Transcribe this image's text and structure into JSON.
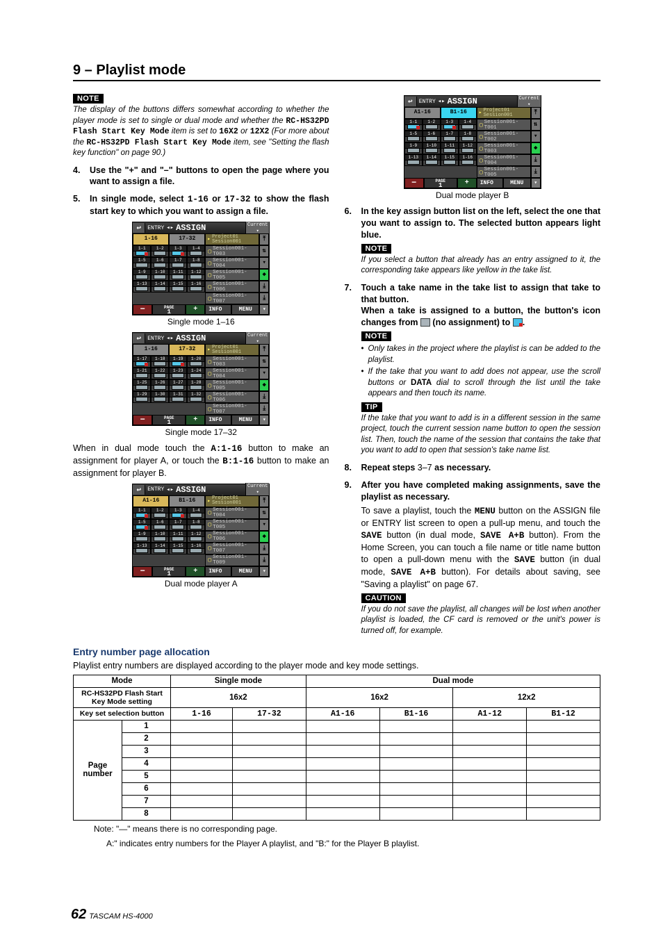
{
  "section_title": "9 – Playlist mode",
  "note_label": "NOTE",
  "tip_label": "TIP",
  "caution_label": "CAUTION",
  "left": {
    "note1_a": "The display of the buttons differs somewhat according to whether the player mode is set to single or dual mode and whether the ",
    "note1_m1": "RC-HS32PD Flash Start Key Mode",
    "note1_b": " item is set to ",
    "note1_m2": "16X2",
    "note1_c": " or ",
    "note1_m3": "12X2",
    "note1_d": " (For more about the ",
    "note1_m4": "RC-HS32PD Flash Start Key Mode",
    "note1_e": " item, see \"Setting the flash key function\" on page 90.)",
    "step4": "Use the \"+\" and \"–\" buttons to open the page where you want to assign a file.",
    "step5_a": "In single mode, select ",
    "step5_m1": "1-16",
    "step5_b": " or ",
    "step5_m2": "17-32",
    "step5_c": " to show the flash start key to which you want to assign a file.",
    "cap1": "Single mode 1–16",
    "cap2": "Single mode 17–32",
    "dual_a": "When in dual mode touch the ",
    "dual_m1": "A:1-16",
    "dual_b": " button to make an assignment for player A, or touch the ",
    "dual_m2": "B:1-16",
    "dual_c": " button to make an assignment for player B.",
    "cap3": "Dual mode player A"
  },
  "right": {
    "cap4": "Dual mode player B",
    "step6": "In the key assign button list on the left, select the one that you want to assign to. The selected button appears light blue.",
    "note2": "If you select a button that already has an entry assigned to it, the corresponding take appears like yellow in the take list.",
    "step7": "Touch a take name in the take list to assign that take to that button.",
    "step7b_a": "When a take is assigned to a button, the button's icon changes from ",
    "step7b_b": " (no assignment) to ",
    "step7b_c": ".",
    "bullet1": "Only takes in the project where the playlist is can be added to the playlist.",
    "bullet2_a": "If the take that you want to add does not appear, use the scroll buttons or ",
    "bullet2_m": "DATA",
    "bullet2_b": " dial to scroll through the list until the take appears and then touch its name.",
    "tip": "If the take that you want to add is in a different session in the same project, touch the current session name button to open the session list. Then, touch the name of the session that contains the take that you want to add to open that session's take name list.",
    "step8_a": "Repeat steps ",
    "step8_m": "3–7",
    "step8_b": " as necessary.",
    "step9": "After you have completed making assignments, save the playlist as necessary.",
    "save_a": "To save a playlist, touch the ",
    "save_m1": "MENU",
    "save_b": " button on the ASSIGN file or ENTRY list screen to open a pull-up menu, and touch the ",
    "save_m2": "SAVE",
    "save_c": " button (in dual mode, ",
    "save_m3": "SAVE A+B",
    "save_d": " button). From the Home Screen, you can touch a file name or title name button to open a pull-down menu with the ",
    "save_m4": "SAVE",
    "save_e": " button (in dual mode, ",
    "save_m5": "SAVE A+B",
    "save_f": " button). For details about saving, see \"Saving a playlist\" on page 67.",
    "caution": "If you do not save the playlist, all changes will be lost when another playlist is loaded, the CF card is removed or the unit's power is turned off, for example."
  },
  "assigns": {
    "title_prefix": "ENTRY",
    "arrow": "◂▸",
    "title_main": "ASSIGN",
    "current": "Current",
    "proj": "Project01",
    "sess": "Session001",
    "info": "INFO",
    "menu": "MENU",
    "page": "PAGE",
    "s1": {
      "tabs": [
        "1-16",
        "17-32"
      ],
      "keys": [
        [
          "1-1",
          "1-2",
          "1-3",
          "1-4"
        ],
        [
          "1-5",
          "1-6",
          "1-7",
          "1-8"
        ],
        [
          "1-9",
          "1-10",
          "1-11",
          "1-12"
        ],
        [
          "1-13",
          "1-14",
          "1-15",
          "1-16"
        ]
      ],
      "takes": [
        "Session001-T003",
        "Session001-T004",
        "Session001-T005",
        "Session001-T006",
        "Session001-T007"
      ]
    },
    "s2": {
      "tabs": [
        "1-16",
        "17-32"
      ],
      "keys": [
        [
          "1-17",
          "1-18",
          "1-19",
          "1-20"
        ],
        [
          "1-21",
          "1-22",
          "1-23",
          "1-24"
        ],
        [
          "1-25",
          "1-26",
          "1-27",
          "1-28"
        ],
        [
          "1-29",
          "1-30",
          "1-31",
          "1-32"
        ]
      ],
      "takes": [
        "Session001-T003",
        "Session001-T004",
        "Session001-T005",
        "Session001-T006",
        "Session001-T007"
      ]
    },
    "s3": {
      "tabs": [
        "A1-16",
        "B1-16"
      ],
      "keys": [
        [
          "1-1",
          "1-2",
          "1-3",
          "1-4"
        ],
        [
          "1-5",
          "1-6",
          "1-7",
          "1-8"
        ],
        [
          "1-9",
          "1-10",
          "1-11",
          "1-12"
        ],
        [
          "1-13",
          "1-14",
          "1-15",
          "1-16"
        ]
      ],
      "takes": [
        "Session001-T004",
        "Session001-T005",
        "Session001-T006",
        "Session001-T007",
        "Session001-T009"
      ]
    },
    "s4": {
      "tabs": [
        "A1-16",
        "B1-16"
      ],
      "keys": [
        [
          "1-1",
          "1-2",
          "1-3",
          "1-4"
        ],
        [
          "1-5",
          "1-6",
          "1-7",
          "1-8"
        ],
        [
          "1-9",
          "1-10",
          "1-11",
          "1-12"
        ],
        [
          "1-13",
          "1-14",
          "1-15",
          "1-16"
        ]
      ],
      "takes": [
        "Session001-T001",
        "Session001-T002",
        "Session001-T003",
        "Session001-T004",
        "Session001-T005"
      ]
    }
  },
  "alloc": {
    "title": "Entry number page allocation",
    "intro": "Playlist entry numbers are displayed according to the player mode and key mode settings.",
    "headers": {
      "mode": "Mode",
      "single": "Single mode",
      "dual": "Dual mode",
      "rcsetting": "RC-HS32PD Flash Start Key Mode setting",
      "k16": "16x2",
      "k12": "12x2",
      "keysel": "Key set selection button",
      "c1": "1-16",
      "c2": "17-32",
      "c3": "A1-16",
      "c4": "B1-16",
      "c5": "A1-12",
      "c6": "B1-12",
      "page": "Page number"
    },
    "rows": [
      "1",
      "2",
      "3",
      "4",
      "5",
      "6",
      "7",
      "8"
    ],
    "note1": "Note: \"—\" means there is no corresponding page.",
    "note2": "A:\" indicates entry numbers for the Player A playlist, and \"B:\" for the Player B playlist."
  },
  "footer": {
    "page": "62",
    "manual": "TASCAM HS-4000"
  }
}
